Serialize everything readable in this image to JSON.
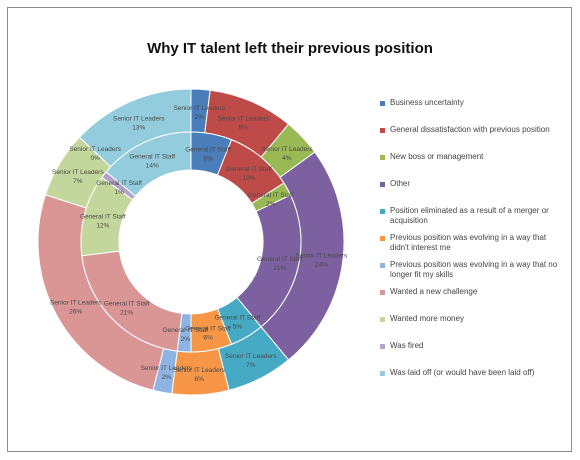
{
  "chart_data": {
    "type": "doughnut",
    "title": "Why IT talent left their previous position",
    "categories": [
      "Business uncertainty",
      "General dissatisfaction with previous position",
      "New boss or management",
      "Other",
      "Position eliminated as a result of a merger or acquisition",
      "Previous position was evolving in a way that didn't interest me",
      "Previous position was evolving in a way that no longer fit my skills",
      "Wanted a new challenge",
      "Wanted more money",
      "Was fired",
      "Was laid off (or would have been laid off)"
    ],
    "colors": [
      "#4a7ebb",
      "#be4b48",
      "#98b954",
      "#7d60a0",
      "#46aac5",
      "#f79646",
      "#8eb4e3",
      "#d99694",
      "#c3d69b",
      "#b3a2c7",
      "#93cddd"
    ],
    "series": [
      {
        "name": "Senior IT Leaders",
        "values": [
          2,
          9,
          4,
          24,
          7,
          6,
          2,
          26,
          7,
          0,
          13
        ],
        "labels": [
          "2%",
          "9%",
          "4%",
          "24%",
          "7%",
          "6%",
          "2%",
          "26%",
          "7%",
          "0%",
          "13%"
        ]
      },
      {
        "name": "General IT Staff",
        "values": [
          6,
          10,
          2,
          21,
          5,
          6,
          2,
          21,
          12,
          1,
          14
        ],
        "labels": [
          "6%",
          "10%",
          "2%",
          "21%",
          "5%",
          "6%",
          "2%",
          "21%",
          "12%",
          "1%",
          "14%"
        ]
      }
    ],
    "legend": {
      "position": "right"
    }
  }
}
